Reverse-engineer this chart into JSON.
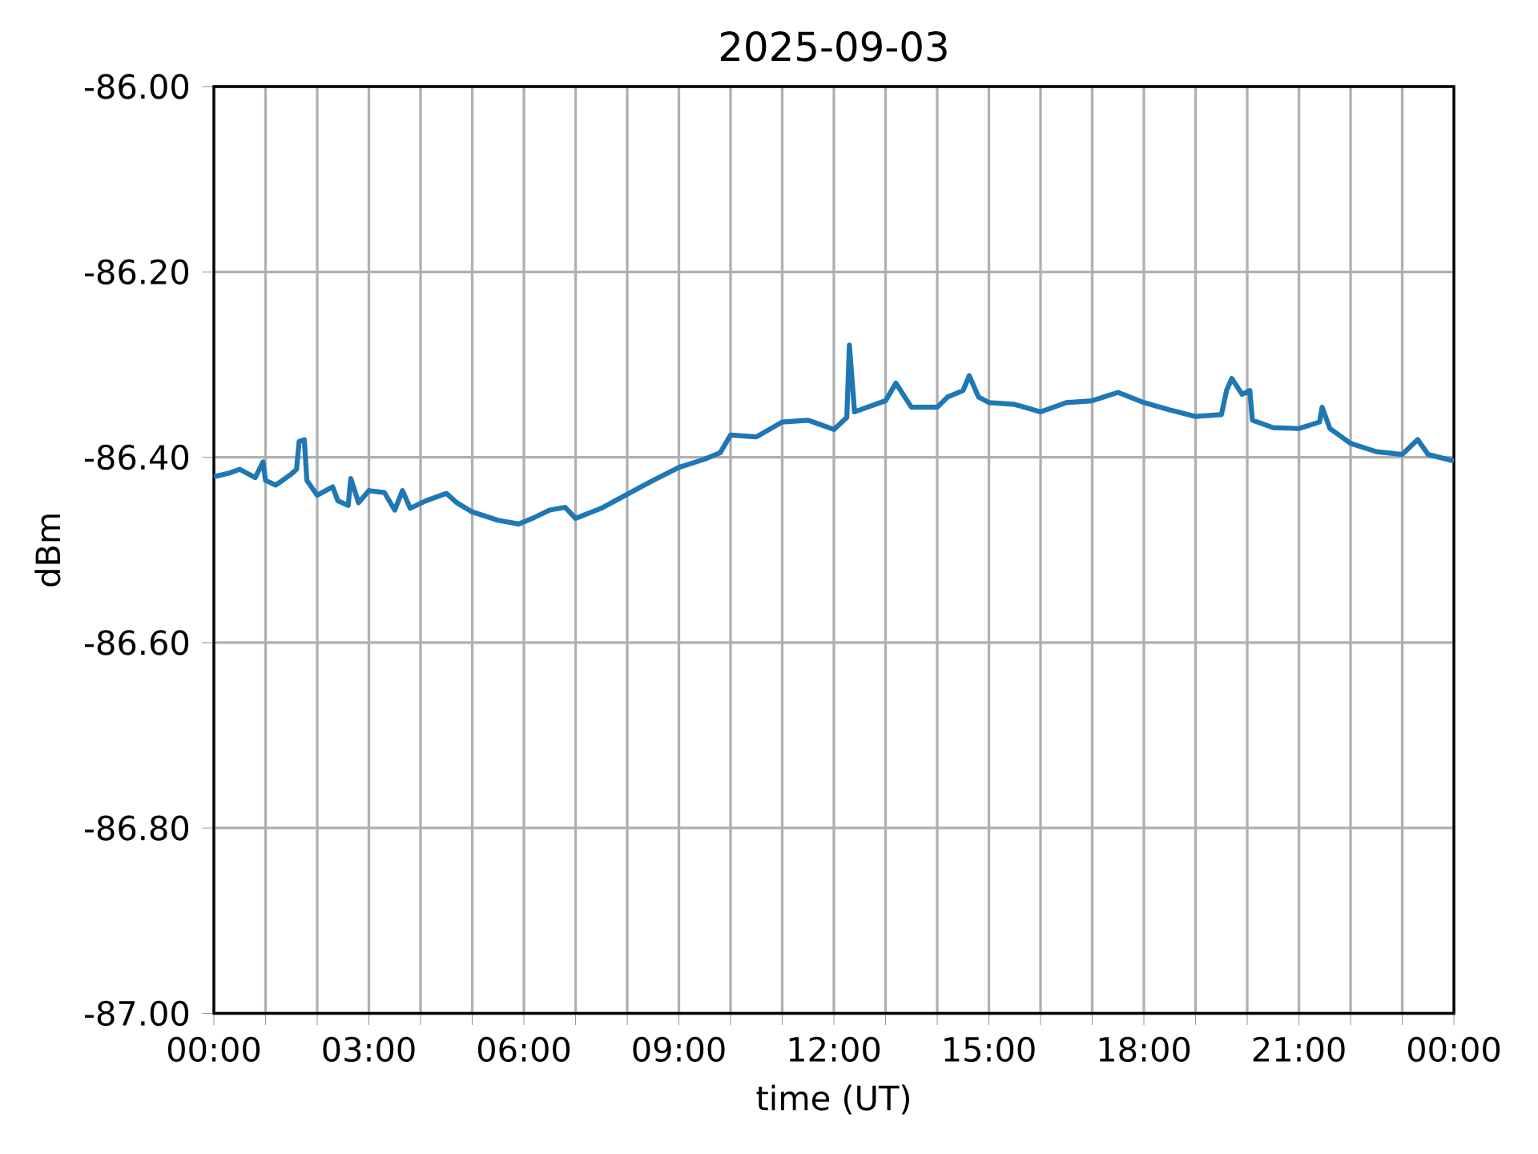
{
  "chart_data": {
    "type": "line",
    "title": "2025-09-03",
    "xlabel": "time (UT)",
    "ylabel": "dBm",
    "color": "#1f77b4",
    "grid": true,
    "xlim": [
      0,
      24
    ],
    "ylim": [
      -87,
      -86
    ],
    "xticks": [
      {
        "value": 0,
        "label": "00:00"
      },
      {
        "value": 1,
        "label": null
      },
      {
        "value": 2,
        "label": null
      },
      {
        "value": 3,
        "label": "03:00"
      },
      {
        "value": 4,
        "label": null
      },
      {
        "value": 5,
        "label": null
      },
      {
        "value": 6,
        "label": "06:00"
      },
      {
        "value": 7,
        "label": null
      },
      {
        "value": 8,
        "label": null
      },
      {
        "value": 9,
        "label": "09:00"
      },
      {
        "value": 10,
        "label": null
      },
      {
        "value": 11,
        "label": null
      },
      {
        "value": 12,
        "label": "12:00"
      },
      {
        "value": 13,
        "label": null
      },
      {
        "value": 14,
        "label": null
      },
      {
        "value": 15,
        "label": "15:00"
      },
      {
        "value": 16,
        "label": null
      },
      {
        "value": 17,
        "label": null
      },
      {
        "value": 18,
        "label": "18:00"
      },
      {
        "value": 19,
        "label": null
      },
      {
        "value": 20,
        "label": null
      },
      {
        "value": 21,
        "label": "21:00"
      },
      {
        "value": 22,
        "label": null
      },
      {
        "value": 23,
        "label": null
      },
      {
        "value": 24,
        "label": "00:00"
      }
    ],
    "yticks": [
      {
        "value": -87,
        "label": "-87.00"
      },
      {
        "value": -86.8,
        "label": "-86.80"
      },
      {
        "value": -86.6,
        "label": "-86.60"
      },
      {
        "value": -86.4,
        "label": "-86.40"
      },
      {
        "value": -86.2,
        "label": "-86.20"
      },
      {
        "value": -86,
        "label": "-86.00"
      }
    ],
    "x": [
      0,
      0.3,
      0.5,
      0.8,
      0.95,
      1.0,
      1.2,
      1.5,
      1.6,
      1.65,
      1.75,
      1.8,
      2.0,
      2.3,
      2.4,
      2.6,
      2.65,
      2.8,
      3.0,
      3.3,
      3.5,
      3.65,
      3.8,
      4.1,
      4.5,
      4.7,
      5.0,
      5.5,
      5.9,
      6.2,
      6.5,
      6.8,
      7.0,
      7.5,
      8.0,
      8.5,
      9.0,
      9.5,
      9.8,
      10.0,
      10.5,
      11.0,
      11.5,
      12.0,
      12.25,
      12.3,
      12.4,
      13.0,
      13.2,
      13.5,
      14.0,
      14.2,
      14.5,
      14.62,
      14.8,
      15.0,
      15.5,
      16.0,
      16.5,
      17.0,
      17.5,
      18.0,
      18.5,
      19.0,
      19.5,
      19.6,
      19.7,
      19.9,
      20.05,
      20.1,
      20.5,
      21.0,
      21.4,
      21.45,
      21.6,
      22.0,
      22.5,
      23.0,
      23.3,
      23.5,
      24.0
    ],
    "values": [
      -86.421,
      -86.417,
      -86.413,
      -86.422,
      -86.405,
      -86.425,
      -86.43,
      -86.418,
      -86.413,
      -86.383,
      -86.381,
      -86.425,
      -86.441,
      -86.432,
      -86.447,
      -86.452,
      -86.423,
      -86.449,
      -86.436,
      -86.438,
      -86.457,
      -86.436,
      -86.455,
      -86.447,
      -86.439,
      -86.449,
      -86.459,
      -86.468,
      -86.472,
      -86.465,
      -86.457,
      -86.454,
      -86.466,
      -86.455,
      -86.44,
      -86.425,
      -86.411,
      -86.402,
      -86.395,
      -86.376,
      -86.378,
      -86.362,
      -86.36,
      -86.37,
      -86.357,
      -86.279,
      -86.351,
      -86.339,
      -86.32,
      -86.346,
      -86.346,
      -86.335,
      -86.328,
      -86.312,
      -86.335,
      -86.341,
      -86.343,
      -86.351,
      -86.341,
      -86.339,
      -86.33,
      -86.341,
      -86.349,
      -86.356,
      -86.354,
      -86.328,
      -86.315,
      -86.332,
      -86.328,
      -86.36,
      -86.368,
      -86.369,
      -86.362,
      -86.346,
      -86.369,
      -86.385,
      -86.394,
      -86.397,
      -86.381,
      -86.397,
      -86.404
    ]
  }
}
